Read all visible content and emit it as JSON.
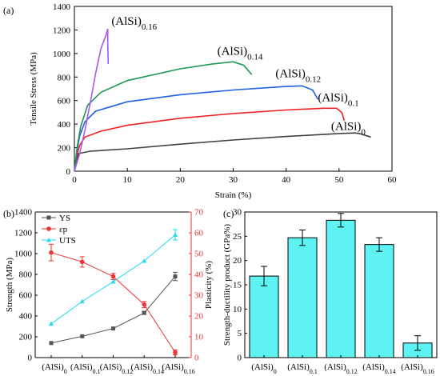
{
  "panels": {
    "a_label": "(a)",
    "b_label": "(b)",
    "c_label": "(c)"
  },
  "chart_data": [
    {
      "type": "line",
      "panel": "(a)",
      "xlabel": "Strain (%)",
      "ylabel": "Tensile Stress (MPa)",
      "xlim": [
        0,
        60
      ],
      "ylim": [
        0,
        1400
      ],
      "xticks": [
        0,
        10,
        20,
        30,
        40,
        50,
        60
      ],
      "yticks": [
        0,
        200,
        400,
        600,
        800,
        1000,
        1200,
        1400
      ],
      "series": [
        {
          "base": "(AlSi)",
          "sub": "0",
          "color": "#404040",
          "points": [
            [
              0,
              0
            ],
            [
              0.3,
              80
            ],
            [
              0.8,
              150
            ],
            [
              3,
              170
            ],
            [
              10,
              190
            ],
            [
              20,
              230
            ],
            [
              30,
              265
            ],
            [
              40,
              295
            ],
            [
              50,
              320
            ],
            [
              53,
              325
            ],
            [
              54,
              318
            ],
            [
              56,
              290
            ]
          ]
        },
        {
          "base": "(AlSi)",
          "sub": "0.1",
          "color": "#ee2222",
          "points": [
            [
              0,
              0
            ],
            [
              0.4,
              120
            ],
            [
              1,
              220
            ],
            [
              2,
              290
            ],
            [
              5,
              340
            ],
            [
              10,
              390
            ],
            [
              20,
              450
            ],
            [
              30,
              490
            ],
            [
              40,
              520
            ],
            [
              47,
              535
            ],
            [
              49.5,
              535
            ],
            [
              50.5,
              500
            ],
            [
              51,
              430
            ]
          ]
        },
        {
          "base": "(AlSi)",
          "sub": "0.12",
          "color": "#1f5fe8",
          "points": [
            [
              0,
              0
            ],
            [
              0.4,
              150
            ],
            [
              1,
              300
            ],
            [
              2,
              420
            ],
            [
              4,
              510
            ],
            [
              10,
              590
            ],
            [
              20,
              650
            ],
            [
              30,
              690
            ],
            [
              40,
              720
            ],
            [
              43,
              725
            ],
            [
              45,
              690
            ],
            [
              46,
              610
            ]
          ]
        },
        {
          "base": "(AlSi)",
          "sub": "0.14",
          "color": "#1f9955",
          "points": [
            [
              0,
              0
            ],
            [
              0.5,
              200
            ],
            [
              1.2,
              380
            ],
            [
              2.5,
              560
            ],
            [
              5,
              670
            ],
            [
              10,
              770
            ],
            [
              20,
              870
            ],
            [
              26,
              910
            ],
            [
              30,
              930
            ],
            [
              32,
              900
            ],
            [
              33.5,
              820
            ]
          ]
        },
        {
          "base": "(AlSi)",
          "sub": "0.16",
          "color": "#aa55ee",
          "points": [
            [
              0,
              0
            ],
            [
              1,
              150
            ],
            [
              2,
              350
            ],
            [
              3,
              580
            ],
            [
              4,
              830
            ],
            [
              5,
              1040
            ],
            [
              6,
              1160
            ],
            [
              6.3,
              1210
            ],
            [
              6.3,
              1100
            ],
            [
              6.4,
              910
            ]
          ]
        }
      ],
      "annotations": [
        {
          "base": "(AlSi)",
          "sub": "0.16",
          "x": 7,
          "y": 1245
        },
        {
          "base": "(AlSi)",
          "sub": "0.14",
          "x": 27,
          "y": 990
        },
        {
          "base": "(AlSi)",
          "sub": "0.12",
          "x": 38,
          "y": 800
        },
        {
          "base": "(AlSi)",
          "sub": "0.1",
          "x": 46,
          "y": 595
        },
        {
          "base": "(AlSi)",
          "sub": "0",
          "x": 48.5,
          "y": 350
        }
      ]
    },
    {
      "type": "line",
      "panel": "(b)",
      "categories": [
        {
          "base": "(AlSi)",
          "sub": "0"
        },
        {
          "base": "(AlSi)",
          "sub": "0.1"
        },
        {
          "base": "(AlSi)",
          "sub": "0.12"
        },
        {
          "base": "(AlSi)",
          "sub": "0.14"
        },
        {
          "base": "(AlSi)",
          "sub": "0.16"
        }
      ],
      "ylabel": "Strength (MPa)",
      "y2label": "Plasticity (%)",
      "ylim": [
        0,
        1400
      ],
      "yticks": [
        0,
        200,
        400,
        600,
        800,
        1000,
        1200,
        1400
      ],
      "y2lim": [
        0,
        70
      ],
      "y2ticks": [
        0,
        10,
        20,
        30,
        40,
        50,
        60,
        70
      ],
      "legend": "top-left",
      "series": [
        {
          "name": "YS",
          "axis": "left",
          "color": "#555555",
          "marker": "square",
          "values": [
            140,
            205,
            280,
            430,
            780
          ],
          "errors": [
            0,
            0,
            0,
            15,
            40
          ]
        },
        {
          "name": "εp",
          "axis": "right",
          "color": "#ee3333",
          "marker": "circle",
          "values": [
            50.5,
            46,
            39,
            25.5,
            2.5
          ],
          "errors": [
            4,
            2.5,
            1.5,
            1.5,
            1.2
          ]
        },
        {
          "name": "UTS",
          "axis": "left",
          "color": "#22ddee",
          "marker": "triangle",
          "values": [
            325,
            540,
            730,
            930,
            1180
          ],
          "errors": [
            0,
            0,
            0,
            0,
            50
          ]
        }
      ]
    },
    {
      "type": "bar",
      "panel": "(c)",
      "categories": [
        {
          "base": "(AlSi)",
          "sub": "0"
        },
        {
          "base": "(AlSi)",
          "sub": "0.1"
        },
        {
          "base": "(AlSi)",
          "sub": "0.12"
        },
        {
          "base": "(AlSi)",
          "sub": "0.14"
        },
        {
          "base": "(AlSi)",
          "sub": "0.16"
        }
      ],
      "ylabel": "Strength-ductility product (GPa%)",
      "ylim": [
        0,
        30
      ],
      "yticks": [
        0,
        5,
        10,
        15,
        20,
        25,
        30
      ],
      "bar_color": "#5ff2f2",
      "values": [
        16.8,
        24.7,
        28.3,
        23.3,
        3.0
      ],
      "errors": [
        2.0,
        1.6,
        1.4,
        1.4,
        1.5
      ]
    }
  ]
}
